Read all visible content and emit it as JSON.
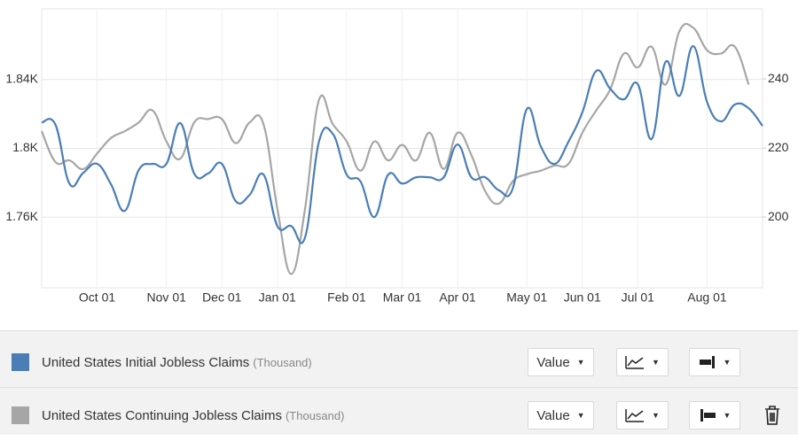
{
  "chart_data": {
    "type": "line",
    "categories": [
      null,
      null,
      null,
      null,
      "Oct 01",
      null,
      null,
      null,
      null,
      "Nov 01",
      null,
      null,
      null,
      "Dec 01",
      null,
      null,
      null,
      "Jan 01",
      null,
      null,
      null,
      null,
      "Feb 01",
      null,
      null,
      null,
      "Mar 01",
      null,
      null,
      null,
      "Apr 01",
      null,
      null,
      null,
      null,
      "May 01",
      null,
      null,
      null,
      "Jun 01",
      null,
      null,
      null,
      "Jul 01",
      null,
      null,
      null,
      null,
      "Aug 01",
      null,
      null,
      null,
      null
    ],
    "series": [
      {
        "name": "United States Initial Jobless Claims",
        "unit": "(Thousand)",
        "color": "#4a7eb5",
        "axis": "y2",
        "values": [
          227.4,
          226.7,
          209.7,
          212.8,
          215.4,
          209.5,
          201.8,
          213.6,
          215.4,
          215.4,
          227.2,
          212.6,
          212.6,
          215.4,
          204.6,
          206.4,
          212.3,
          197.4,
          197.4,
          194.1,
          221.8,
          224.1,
          212.3,
          210.3,
          200,
          212.3,
          209.7,
          211.5,
          211.5,
          211.5,
          221,
          211.5,
          211.5,
          207.7,
          208.5,
          231.3,
          220.5,
          215.4,
          221.8,
          230.3,
          242.3,
          237.2,
          234.1,
          238.5,
          222.6,
          244.9,
          235.1,
          249.5,
          233.3,
          227.7,
          232.6,
          231.5,
          226.4
        ]
      },
      {
        "name": "United States Continuing Jobless Claims",
        "unit": "(Thousand)",
        "color": "#a6a6a6",
        "values": [
          1.81,
          1.792,
          1.793,
          1.788,
          1.797,
          1.806,
          1.81,
          1.815,
          1.822,
          1.804,
          1.794,
          1.815,
          1.817,
          1.817,
          1.803,
          1.815,
          1.814,
          1.765,
          1.727,
          1.765,
          1.828,
          1.814,
          1.804,
          1.787,
          1.804,
          1.793,
          1.802,
          1.793,
          1.809,
          1.788,
          1.809,
          1.796,
          1.775,
          1.768,
          1.781,
          1.785,
          1.787,
          1.79,
          1.791,
          1.809,
          1.822,
          1.834,
          1.855,
          1.847,
          1.859,
          1.837,
          1.868,
          1.87,
          1.857,
          1.855,
          1.859,
          1.837,
          null
        ]
      }
    ],
    "ylim": [
      1.719,
      1.881
    ],
    "yticks": [
      {
        "value": 1.76,
        "label": "1.76K"
      },
      {
        "value": 1.8,
        "label": "1.8K"
      },
      {
        "value": 1.84,
        "label": "1.84K"
      }
    ],
    "y2lim": [
      179.5,
      260.3
    ],
    "y2ticks": [
      200,
      220,
      240
    ],
    "grid": true
  },
  "controls": [
    {
      "dropdown": "Value"
    },
    {
      "dropdown": "Value"
    }
  ]
}
